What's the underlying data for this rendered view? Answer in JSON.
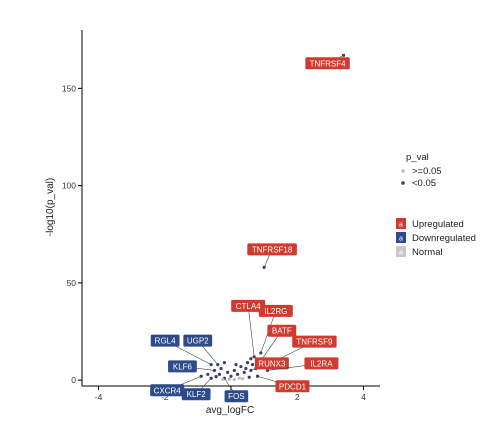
{
  "chart_data": {
    "type": "scatter",
    "title": "",
    "xlabel": "avg_logFC",
    "ylabel": "-log10(p_val)",
    "xlim": [
      -4.5,
      4.5
    ],
    "ylim": [
      -3,
      180
    ],
    "x_ticks": [
      -4,
      -2,
      0,
      2,
      4
    ],
    "y_ticks": [
      0,
      50,
      100,
      150
    ],
    "grid": false,
    "legends": {
      "p_val": {
        "title": "p_val",
        "entries": [
          {
            "label": ">=0.05",
            "color": "#bdbdbd"
          },
          {
            "label": "<0.05",
            "color": "#3b3f6b"
          }
        ]
      },
      "regulation": {
        "entries": [
          {
            "key": "a",
            "label": "Upregulated",
            "color": "#d13b2f"
          },
          {
            "key": "a",
            "label": "Downregulated",
            "color": "#2d4a8a"
          },
          {
            "key": "a",
            "label": "Normal",
            "color": "#c8c8c8"
          }
        ]
      }
    },
    "labeled_genes": [
      {
        "gene": "TNFRSF4",
        "x": 3.4,
        "y": 167,
        "status": "Upregulated"
      },
      {
        "gene": "TNFRSF18",
        "x": 1.0,
        "y": 58,
        "status": "Upregulated"
      },
      {
        "gene": "IL2RG",
        "x": 0.9,
        "y": 14,
        "status": "Upregulated"
      },
      {
        "gene": "CTLA4",
        "x": 0.7,
        "y": 12,
        "status": "Upregulated"
      },
      {
        "gene": "BATF",
        "x": 0.9,
        "y": 10,
        "status": "Upregulated"
      },
      {
        "gene": "TNFRSF9",
        "x": 1.1,
        "y": 8,
        "status": "Upregulated"
      },
      {
        "gene": "RUNX3",
        "x": 0.6,
        "y": 5,
        "status": "Upregulated"
      },
      {
        "gene": "IL2RA",
        "x": 1.1,
        "y": 5,
        "status": "Upregulated"
      },
      {
        "gene": "PDCD1",
        "x": 0.8,
        "y": 2,
        "status": "Upregulated"
      },
      {
        "gene": "RGL4",
        "x": -0.6,
        "y": 8,
        "status": "Downregulated"
      },
      {
        "gene": "UGP2",
        "x": -0.4,
        "y": 8,
        "status": "Downregulated"
      },
      {
        "gene": "KLF6",
        "x": -0.5,
        "y": 5,
        "status": "Downregulated"
      },
      {
        "gene": "CXCR4",
        "x": -0.9,
        "y": 2,
        "status": "Downregulated"
      },
      {
        "gene": "KLF2",
        "x": -0.6,
        "y": 1,
        "status": "Downregulated"
      },
      {
        "gene": "FOS",
        "x": -0.2,
        "y": 1,
        "status": "Downregulated"
      }
    ],
    "points": [
      {
        "x": 3.4,
        "y": 167,
        "sig": true
      },
      {
        "x": 1.0,
        "y": 58,
        "sig": true
      },
      {
        "x": 0.9,
        "y": 14,
        "sig": true
      },
      {
        "x": 0.7,
        "y": 12,
        "sig": true
      },
      {
        "x": 0.9,
        "y": 10,
        "sig": true
      },
      {
        "x": 1.1,
        "y": 8,
        "sig": true
      },
      {
        "x": 0.6,
        "y": 5,
        "sig": true
      },
      {
        "x": 1.1,
        "y": 5,
        "sig": true
      },
      {
        "x": 0.8,
        "y": 2,
        "sig": true
      },
      {
        "x": -0.6,
        "y": 8,
        "sig": true
      },
      {
        "x": -0.4,
        "y": 8,
        "sig": true
      },
      {
        "x": -0.5,
        "y": 5,
        "sig": true
      },
      {
        "x": -0.9,
        "y": 2,
        "sig": true
      },
      {
        "x": -0.6,
        "y": 1,
        "sig": true
      },
      {
        "x": -0.2,
        "y": 1,
        "sig": true
      },
      {
        "x": -0.3,
        "y": 6,
        "sig": true
      },
      {
        "x": -0.1,
        "y": 4,
        "sig": true
      },
      {
        "x": 0.1,
        "y": 5,
        "sig": true
      },
      {
        "x": 0.2,
        "y": 3,
        "sig": true
      },
      {
        "x": 0.3,
        "y": 7,
        "sig": true
      },
      {
        "x": 0.4,
        "y": 4,
        "sig": true
      },
      {
        "x": 0.5,
        "y": 9,
        "sig": true
      },
      {
        "x": -0.2,
        "y": 9,
        "sig": true
      },
      {
        "x": 0.0,
        "y": 2,
        "sig": true
      },
      {
        "x": -0.7,
        "y": 3,
        "sig": true
      },
      {
        "x": 0.6,
        "y": 11,
        "sig": true
      },
      {
        "x": 0.45,
        "y": 6,
        "sig": true
      },
      {
        "x": -0.35,
        "y": 3,
        "sig": true
      },
      {
        "x": 0.15,
        "y": 8,
        "sig": true
      },
      {
        "x": 0.25,
        "y": 1,
        "sig": false
      },
      {
        "x": -0.05,
        "y": 0.5,
        "sig": false
      },
      {
        "x": 0.35,
        "y": 0.8,
        "sig": false
      },
      {
        "x": -0.25,
        "y": 0.4,
        "sig": false
      },
      {
        "x": 0.1,
        "y": 0.3,
        "sig": false
      },
      {
        "x": 0.55,
        "y": 1.5,
        "sig": true
      },
      {
        "x": -0.45,
        "y": 1.8,
        "sig": true
      },
      {
        "x": 0.75,
        "y": 6,
        "sig": true
      },
      {
        "x": 0.65,
        "y": 8,
        "sig": true
      }
    ]
  }
}
